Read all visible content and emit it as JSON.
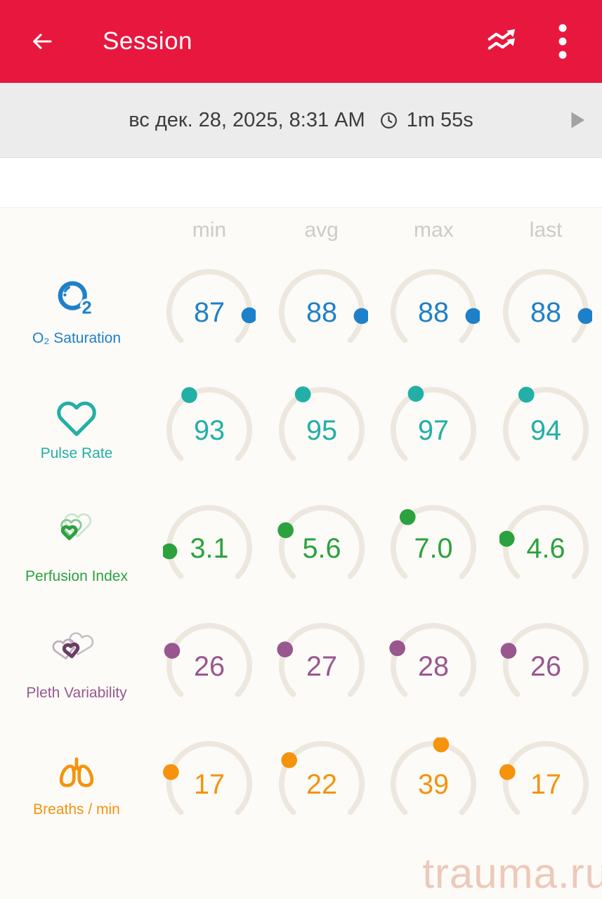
{
  "header": {
    "title": "Session",
    "bg_color": "#E8173E",
    "back_icon": "arrow-left-icon",
    "trend_icon": "trend-chart-icon",
    "menu_icon": "kebab-menu-icon"
  },
  "session_bar": {
    "date": "вс дек. 28, 2025, 8:31 AM",
    "clock_icon": "clock-icon",
    "duration": "1m 55s",
    "play_icon": "play-icon"
  },
  "metrics": {
    "columns": [
      "min",
      "avg",
      "max",
      "last"
    ],
    "arc_color": "#EDE7DE",
    "rows": [
      {
        "id": "o2",
        "icon": "o2-bubble-icon",
        "label": "O₂ Saturation",
        "color": "#1E80C8",
        "values": [
          "87",
          "88",
          "88",
          "88"
        ],
        "dot_angles": [
          95,
          96,
          96,
          96
        ]
      },
      {
        "id": "pulse",
        "icon": "heart-outline-icon",
        "label": "Pulse Rate",
        "color": "#22AFA6",
        "values": [
          "93",
          "95",
          "97",
          "94"
        ],
        "dot_angles": [
          330,
          332,
          334,
          331
        ]
      },
      {
        "id": "perfusion",
        "icon": "nested-hearts-icon",
        "label": "Perfusion Index",
        "color": "#2BA23D",
        "values": [
          "3.1",
          "5.6",
          "7.0",
          "4.6"
        ],
        "dot_angles": [
          265,
          296,
          320,
          283
        ]
      },
      {
        "id": "pleth",
        "icon": "overlapping-hearts-icon",
        "label": "Pleth Variability",
        "color": "#98578F",
        "values": [
          "26",
          "27",
          "28",
          "26"
        ],
        "dot_angles": [
          292,
          294,
          296,
          292
        ]
      },
      {
        "id": "breaths",
        "icon": "lungs-icon",
        "label": "Breaths / min",
        "color": "#F5930D",
        "values": [
          "17",
          "22",
          "39",
          "17"
        ],
        "dot_angles": [
          287,
          306,
          11,
          287
        ]
      }
    ]
  },
  "watermark": "trauma.ru"
}
